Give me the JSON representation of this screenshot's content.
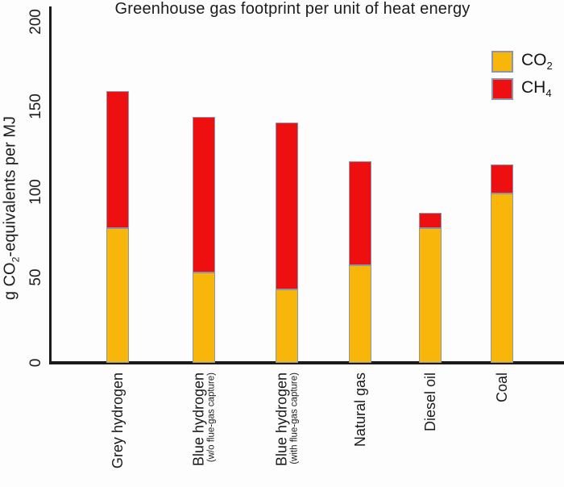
{
  "figure": {
    "title": "Greenhouse gas footprint per unit of heat energy"
  },
  "y_axis": {
    "title_pre": "g CO",
    "title_sub": "2",
    "title_post": "-equivalents per MJ"
  },
  "legend": {
    "items": [
      {
        "id": "co2",
        "label_main": "CO",
        "label_sub": "2",
        "color": "#F7B609"
      },
      {
        "id": "ch4",
        "label_main": "CH",
        "label_sub": "4",
        "color": "#EE0F10"
      }
    ]
  },
  "chart_data": {
    "type": "bar",
    "stacked": true,
    "title": "Greenhouse gas footprint per unit of heat energy",
    "ylabel": "g CO2-equivalents per MJ",
    "xlabel": "",
    "categories": [
      "Grey hydrogen",
      "Blue hydrogen",
      "Blue hydrogen",
      "Natural gas",
      "Diesel oil",
      "Coal"
    ],
    "category_sublabels": [
      "",
      "(w/o flue-gas capture)",
      "(with flue-gas capture)",
      "",
      "",
      ""
    ],
    "series": [
      {
        "name": "CO2",
        "color": "#F7B609",
        "values": [
          79,
          53,
          43,
          57,
          79,
          99
        ]
      },
      {
        "name": "CH4",
        "color": "#EE0F10",
        "values": [
          80,
          91,
          98,
          61,
          9,
          17
        ]
      }
    ],
    "totals": [
      159,
      144,
      141,
      118,
      88,
      116
    ],
    "ylim": [
      0,
      200
    ],
    "yticks": [
      0,
      50,
      100,
      150,
      200
    ],
    "grid": false,
    "legend_position": "upper right",
    "bar_outline_color": "#8C96A8",
    "axis_color": "#1b1b1b"
  }
}
